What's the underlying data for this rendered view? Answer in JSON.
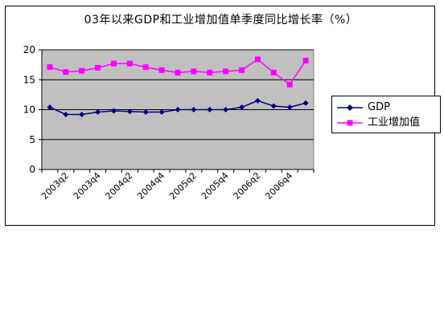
{
  "chart_data": {
    "type": "line",
    "title": "03年以来GDP和工业增加值单季度同比增长率（%）",
    "xlabel": "",
    "ylabel": "",
    "ylim": [
      0,
      20
    ],
    "yticks": [
      "0",
      "5",
      "10",
      "15",
      "20"
    ],
    "categories": [
      "2003q1",
      "2003q2",
      "2003q3",
      "2003q4",
      "2004q1",
      "2004q2",
      "2004q3",
      "2004q4",
      "2005q1",
      "2005q2",
      "2005q3",
      "2005q4",
      "2006q1",
      "2006q2",
      "2006q3",
      "2006q4",
      "2007q1"
    ],
    "xtick_labels": [
      "2003q2",
      "2003q4",
      "2004q2",
      "2004q4",
      "2005q2",
      "2005q4",
      "2006q2",
      "2006q4"
    ],
    "series": [
      {
        "name": "GDP",
        "color": "#000080",
        "marker": "diamond",
        "values": [
          10.4,
          9.2,
          9.2,
          9.6,
          9.8,
          9.7,
          9.6,
          9.6,
          10.0,
          10.0,
          10.0,
          10.0,
          10.4,
          11.5,
          10.6,
          10.4,
          11.1
        ]
      },
      {
        "name": "工业增加值",
        "color": "#ff00ff",
        "marker": "square",
        "values": [
          17.1,
          16.3,
          16.5,
          17.0,
          17.7,
          17.7,
          17.1,
          16.6,
          16.2,
          16.4,
          16.2,
          16.4,
          16.6,
          18.4,
          16.2,
          14.2,
          18.2
        ]
      }
    ],
    "legend_position": "right",
    "grid": true,
    "plot_background": "#c0c0c0"
  }
}
